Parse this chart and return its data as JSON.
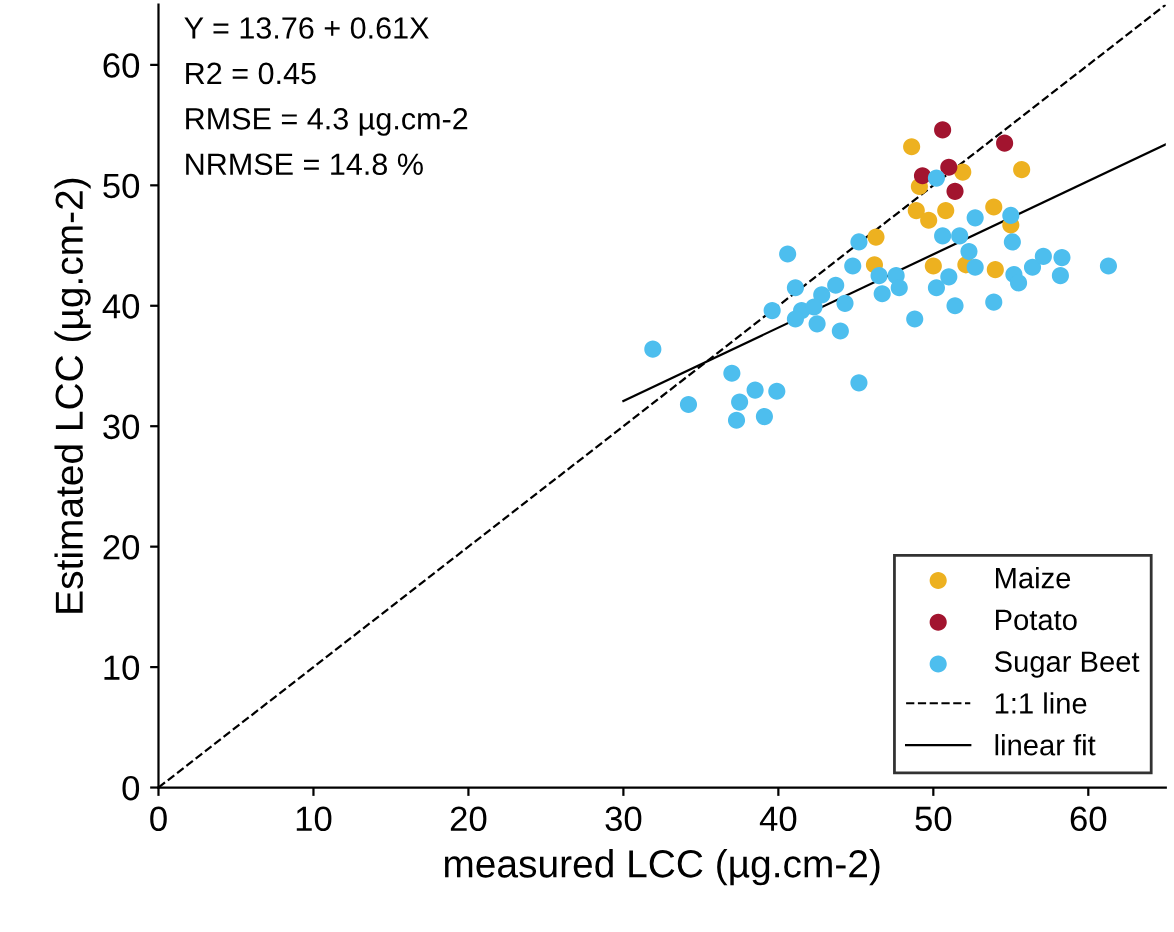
{
  "chart_data": {
    "type": "scatter",
    "xlabel": "measured LCC (µg.cm-2)",
    "ylabel": "Estimated LCC (µg.cm-2)",
    "xlim": [
      0,
      65
    ],
    "ylim": [
      0,
      65
    ],
    "xticks": [
      0,
      10,
      20,
      30,
      40,
      50,
      60
    ],
    "yticks": [
      0,
      10,
      20,
      30,
      40,
      50,
      60
    ],
    "grid": false,
    "legend": "bottom right",
    "marker": "circle",
    "annotations": [
      "Y = 13.76 + 0.61X",
      "R2 = 0.45",
      "RMSE = 4.3 µg.cm-2",
      "NRMSE = 14.8 %"
    ],
    "series": [
      {
        "name": "Maize",
        "color": "#edb120",
        "x": [
          48.6,
          55.7,
          51.9,
          49.1,
          48.9,
          49.7,
          50.8,
          53.9,
          55.0,
          46.3,
          46.2,
          50.0,
          52.1,
          54.0
        ],
        "values": [
          53.2,
          51.3,
          51.1,
          49.9,
          47.9,
          47.1,
          47.9,
          48.2,
          46.7,
          45.7,
          43.4,
          43.3,
          43.4,
          43.0
        ]
      },
      {
        "name": "Potato",
        "color": "#a2142f",
        "x": [
          50.6,
          54.6,
          49.3,
          51.0,
          51.4
        ],
        "values": [
          54.6,
          53.5,
          50.8,
          51.5,
          49.5
        ]
      },
      {
        "name": "Sugar Beet",
        "color": "#4dbeee",
        "x": [
          50.2,
          52.7,
          55.0,
          50.6,
          51.7,
          52.3,
          55.1,
          45.2,
          40.6,
          52.7,
          51.0,
          50.2,
          51.4,
          48.8,
          53.9,
          55.2,
          55.5,
          56.4,
          57.1,
          58.3,
          58.2,
          61.3,
          44.8,
          46.5,
          47.6,
          46.7,
          47.8,
          43.7,
          42.8,
          44.3,
          41.1,
          41.5,
          41.1,
          42.3,
          42.5,
          44.0,
          39.6,
          31.9,
          37.0,
          45.2,
          38.5,
          39.9,
          34.2,
          37.5,
          37.3,
          39.1
        ],
        "values": [
          50.6,
          47.3,
          47.5,
          45.8,
          45.8,
          44.5,
          45.3,
          45.3,
          44.3,
          43.2,
          42.4,
          41.5,
          40.0,
          38.9,
          40.3,
          42.6,
          41.9,
          43.2,
          44.1,
          44.0,
          42.5,
          43.3,
          43.3,
          42.5,
          42.5,
          41.0,
          41.5,
          41.7,
          40.9,
          40.2,
          41.5,
          39.6,
          38.9,
          39.9,
          38.5,
          37.9,
          39.6,
          36.4,
          34.4,
          33.6,
          33.0,
          32.9,
          31.8,
          32.0,
          30.5,
          30.8
        ]
      },
      {
        "name": "1:1 line",
        "type": "line",
        "color": "#000000",
        "line_style": "dashed",
        "marker": "none",
        "x": [
          0,
          65
        ],
        "values": [
          0,
          65
        ]
      },
      {
        "name": "linear fit",
        "type": "line",
        "color": "#000000",
        "line_style": "solid",
        "marker": "none",
        "x": [
          30,
          65
        ],
        "values": [
          32.1,
          53.4
        ]
      }
    ]
  }
}
